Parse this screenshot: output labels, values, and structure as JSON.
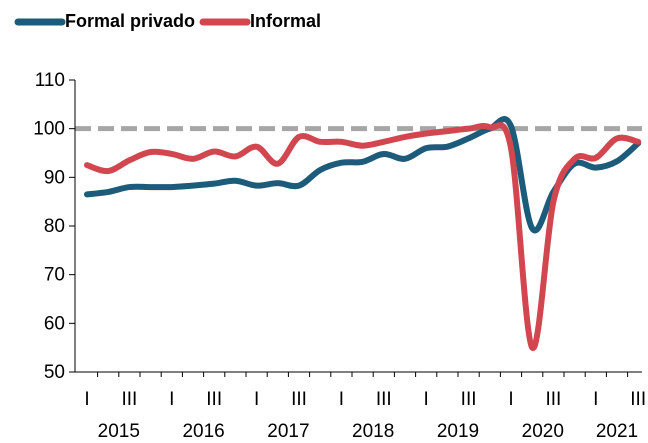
{
  "chart_data": {
    "type": "line",
    "categories": [
      "I",
      null,
      "III",
      null,
      "I",
      null,
      "III",
      null,
      "I",
      null,
      "III",
      null,
      "I",
      null,
      "III",
      null,
      "I",
      null,
      "III",
      null,
      "I",
      null,
      "III",
      null,
      "I",
      null,
      "III"
    ],
    "years": [
      "2015",
      "2016",
      "2017",
      "2018",
      "2019",
      "2020",
      "2021"
    ],
    "series": [
      {
        "name": "Formal privado",
        "color": "#1c5b7a",
        "values": [
          86.5,
          87,
          88,
          88,
          88,
          88.3,
          88.7,
          89.3,
          88.3,
          88.8,
          88.3,
          91.5,
          93,
          93.2,
          94.8,
          93.8,
          96,
          96.3,
          98,
          100,
          100.5,
          79.5,
          87,
          92.8,
          92,
          93.3,
          97
        ]
      },
      {
        "name": "Informal",
        "color": "#d2474f",
        "values": [
          92.5,
          91.3,
          93.5,
          95.2,
          94.8,
          93.8,
          95.3,
          94.3,
          96.3,
          92.8,
          98.3,
          97.3,
          97.3,
          96.5,
          97.3,
          98.3,
          99,
          99.5,
          100,
          100.3,
          96,
          55,
          85,
          93.8,
          94,
          98,
          97.3
        ]
      }
    ],
    "reference_line": 100,
    "reference_color": "#a6a6a6",
    "ylim": [
      50,
      110
    ],
    "yticks": [
      50,
      60,
      70,
      80,
      90,
      100,
      110
    ]
  }
}
